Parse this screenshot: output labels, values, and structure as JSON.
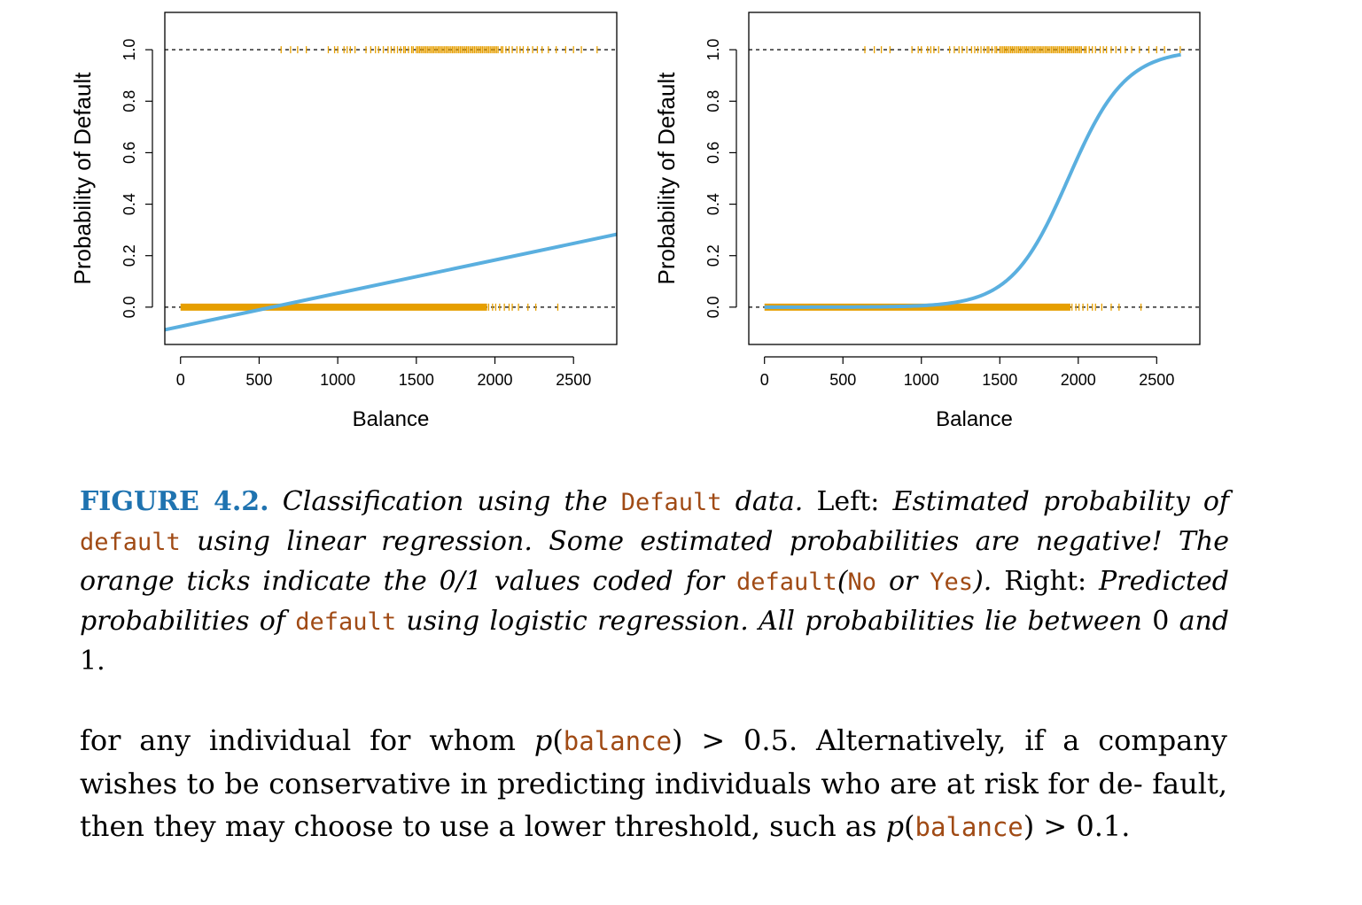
{
  "chart_data": [
    {
      "type": "line",
      "panel": "left",
      "xlabel": "Balance",
      "ylabel": "Probability of Default",
      "xlim": [
        -100,
        2775
      ],
      "ylim": [
        -0.145,
        1.145
      ],
      "xticks": [
        0,
        500,
        1000,
        1500,
        2000,
        2500
      ],
      "yticks": [
        0.0,
        0.2,
        0.4,
        0.6,
        0.8,
        1.0
      ],
      "reference_lines_y": [
        0,
        1
      ],
      "fit": {
        "model": "linear",
        "intercept": -0.075,
        "slope": 0.000129,
        "color": "#5aafdf"
      },
      "ticks_no": {
        "color": "#e69f00",
        "dense_range": [
          0,
          1950
        ],
        "sparse": [
          1960,
          1985,
          2005,
          2030,
          2060,
          2090,
          2110,
          2150,
          2210,
          2260,
          2400
        ]
      },
      "ticks_yes": {
        "color": "#e69f00",
        "values": [
          640,
          700,
          745,
          800,
          940,
          980,
          1000,
          1040,
          1060,
          1080,
          1110,
          1180,
          1210,
          1240,
          1260,
          1290,
          1320,
          1340,
          1360,
          1380,
          1400,
          1420,
          1430,
          1450,
          1470,
          1480,
          1500,
          1510,
          1520,
          1530,
          1540,
          1550,
          1560,
          1570,
          1580,
          1590,
          1600,
          1610,
          1620,
          1630,
          1640,
          1650,
          1660,
          1670,
          1680,
          1690,
          1700,
          1710,
          1720,
          1730,
          1740,
          1750,
          1760,
          1770,
          1780,
          1790,
          1800,
          1810,
          1820,
          1830,
          1840,
          1850,
          1860,
          1870,
          1880,
          1890,
          1900,
          1910,
          1920,
          1930,
          1940,
          1950,
          1960,
          1970,
          1980,
          1990,
          2000,
          2010,
          2020,
          2040,
          2050,
          2070,
          2090,
          2110,
          2140,
          2160,
          2180,
          2210,
          2240,
          2270,
          2300,
          2340,
          2390,
          2450,
          2500,
          2550,
          2650
        ]
      }
    },
    {
      "type": "line",
      "panel": "right",
      "xlabel": "Balance",
      "ylabel": "Probability of Default",
      "xlim": [
        -100,
        2775
      ],
      "ylim": [
        -0.145,
        1.145
      ],
      "xticks": [
        0,
        500,
        1000,
        1500,
        2000,
        2500
      ],
      "yticks": [
        0.0,
        0.2,
        0.4,
        0.6,
        0.8,
        1.0
      ],
      "reference_lines_y": [
        0,
        1
      ],
      "fit": {
        "model": "logistic",
        "intercept": -10.6513,
        "slope": 0.005499,
        "x_range": [
          0,
          2654
        ],
        "color": "#5aafdf"
      },
      "ticks_no": {
        "color": "#e69f00",
        "dense_range": [
          0,
          1950
        ],
        "sparse": [
          1960,
          1985,
          2005,
          2030,
          2060,
          2090,
          2110,
          2150,
          2210,
          2260,
          2400
        ]
      },
      "ticks_yes": {
        "color": "#e69f00",
        "values": [
          640,
          700,
          745,
          800,
          940,
          980,
          1000,
          1040,
          1060,
          1080,
          1110,
          1180,
          1210,
          1240,
          1260,
          1290,
          1320,
          1340,
          1360,
          1380,
          1400,
          1420,
          1430,
          1450,
          1470,
          1480,
          1500,
          1510,
          1520,
          1530,
          1540,
          1550,
          1560,
          1570,
          1580,
          1590,
          1600,
          1610,
          1620,
          1630,
          1640,
          1650,
          1660,
          1670,
          1680,
          1690,
          1700,
          1710,
          1720,
          1730,
          1740,
          1750,
          1760,
          1770,
          1780,
          1790,
          1800,
          1810,
          1820,
          1830,
          1840,
          1850,
          1860,
          1870,
          1880,
          1890,
          1900,
          1910,
          1920,
          1930,
          1940,
          1950,
          1960,
          1970,
          1980,
          1990,
          2000,
          2010,
          2020,
          2040,
          2050,
          2070,
          2090,
          2110,
          2140,
          2160,
          2180,
          2210,
          2240,
          2270,
          2300,
          2340,
          2390,
          2450,
          2500,
          2550,
          2650
        ]
      }
    }
  ],
  "caption": {
    "label": "FIGURE 4.2.",
    "t1": "Classification using the",
    "c1": "Default",
    "t2": "data.",
    "left": "Left:",
    "t3": "Estimated probability of",
    "c2": "default",
    "t4": "using linear regression. Some estimated probabilities are negative! The orange ticks indicate the 0/1 values coded for",
    "c3": "default",
    "t5": "(",
    "c4": "No",
    "t6": "or",
    "c5": "Yes",
    "t7": ").",
    "right": "Right:",
    "t8": "Predicted probabilities of",
    "c6": "default",
    "t9": "using logistic regression. All probabilities lie between",
    "zero": "0",
    "t10": "and",
    "one": "1."
  },
  "body": {
    "s1": "for any individual for whom",
    "p1": "p",
    "po1": "(",
    "c1": "balance",
    "pc1": ")",
    "s2": "> 0.5. Alternatively, if a company wishes to be conservative in predicting individuals who are at risk for de- fault, then they may choose to use a lower threshold, such as",
    "p2": "p",
    "po2": "(",
    "c2": "balance",
    "pc2": ")",
    "s3": "> 0.1."
  }
}
